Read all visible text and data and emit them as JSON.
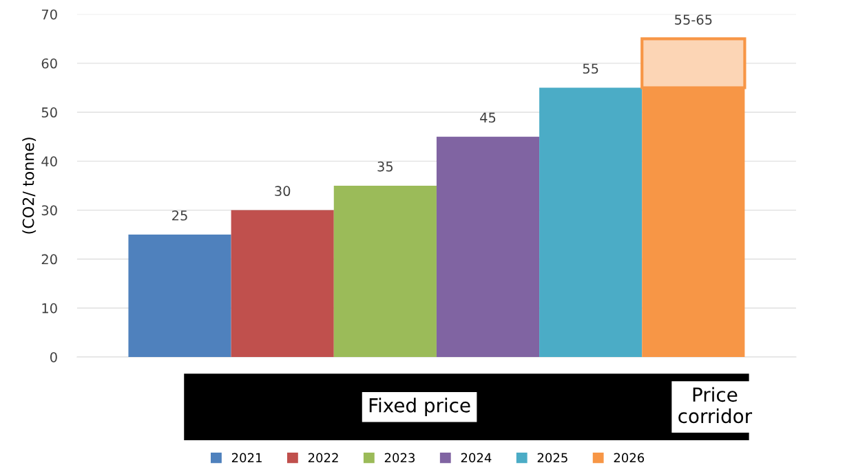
{
  "chart_data": {
    "type": "bar",
    "stacked": true,
    "categories": [
      null,
      null,
      null,
      null,
      null,
      null
    ],
    "series": [
      {
        "name": "2021",
        "color": "#4f81bd",
        "values": [
          25,
          null,
          null,
          null,
          null,
          null
        ],
        "value_labels": [
          "25",
          null,
          null,
          null,
          null,
          null
        ]
      },
      {
        "name": "2022",
        "color": "#c0504d",
        "values": [
          null,
          30,
          null,
          null,
          null,
          null
        ],
        "value_labels": [
          null,
          "30",
          null,
          null,
          null,
          null
        ]
      },
      {
        "name": "2023",
        "color": "#9bbb59",
        "values": [
          null,
          null,
          35,
          null,
          null,
          null
        ],
        "value_labels": [
          null,
          null,
          "35",
          null,
          null,
          null
        ]
      },
      {
        "name": "2024",
        "color": "#8064a2",
        "values": [
          null,
          null,
          null,
          45,
          null,
          null
        ],
        "value_labels": [
          null,
          null,
          null,
          "45",
          null,
          null
        ]
      },
      {
        "name": "2025",
        "color": "#4bacc6",
        "values": [
          null,
          null,
          null,
          null,
          55,
          null
        ],
        "value_labels": [
          null,
          null,
          null,
          null,
          "55",
          null
        ]
      },
      {
        "name": "2026",
        "color": "#f79646",
        "values": [
          null,
          null,
          null,
          null,
          null,
          55
        ],
        "value_labels": [
          null,
          null,
          null,
          null,
          null,
          null
        ]
      },
      {
        "color": "#fcd5b5",
        "values": [
          null,
          null,
          null,
          null,
          null,
          10
        ],
        "value_labels": [
          null,
          null,
          null,
          null,
          null,
          "55-65"
        ]
      }
    ],
    "ylabel": "(CO2/ tonne)",
    "ylim": [
      0,
      70
    ],
    "yticks": [
      0,
      10,
      20,
      30,
      40,
      50,
      60,
      70
    ],
    "grid": "y",
    "legend": "bottom",
    "annotations": [
      "Fixed price",
      "Price\ncorridor"
    ]
  }
}
